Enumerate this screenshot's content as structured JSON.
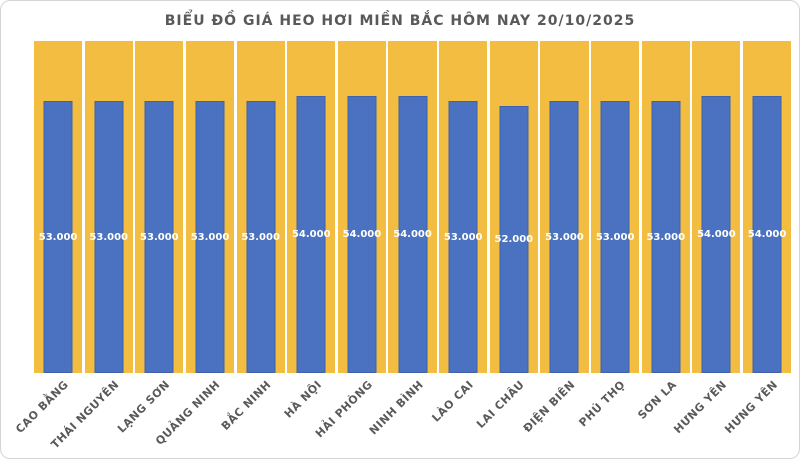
{
  "title": "BIỂU ĐỒ GIÁ HEO HƠI MIỀN BẮC HÔM NAY 20/10/2025",
  "chart_data": {
    "type": "bar",
    "title": "BIỂU ĐỒ GIÁ HEO HƠI MIỀN BẮC HÔM NAY 20/10/2025",
    "categories": [
      "CAO BẰNG",
      "THÁI NGUYÊN",
      "LẠNG SƠN",
      "QUẢNG NINH",
      "BẮC NINH",
      "HÀ NỘI",
      "HẢI PHÒNG",
      "NINH BÌNH",
      "LÀO CAI",
      "LAI CHÂU",
      "ĐIỆN BIÊN",
      "PHÚ THỌ",
      "SƠN LA",
      "HƯNG YÊN",
      "HƯNG YÊN"
    ],
    "values": [
      53000,
      53000,
      53000,
      53000,
      53000,
      54000,
      54000,
      54000,
      53000,
      52000,
      53000,
      53000,
      53000,
      54000,
      54000
    ],
    "value_labels": [
      "53.000",
      "53.000",
      "53.000",
      "53.000",
      "53.000",
      "54.000",
      "54.000",
      "54.000",
      "53.000",
      "52.000",
      "53.000",
      "53.000",
      "53.000",
      "54.000",
      "54.000"
    ],
    "xlabel": "",
    "ylabel": "",
    "ylim": [
      0,
      64700
    ],
    "grid": false,
    "legend": null,
    "axis_ticks_visible": false,
    "value_label_position": "inside-center",
    "x_label_rotation_deg": 45,
    "colors": {
      "bar": "#4b72c0",
      "bar_border": "#3e63ac",
      "background_column": "#f3bd41",
      "value_label_text": "#ffffff",
      "axis_text": "#595959",
      "title_text": "#595959",
      "card_border": "#d5d5d5",
      "card_background": "#ffffff"
    }
  }
}
